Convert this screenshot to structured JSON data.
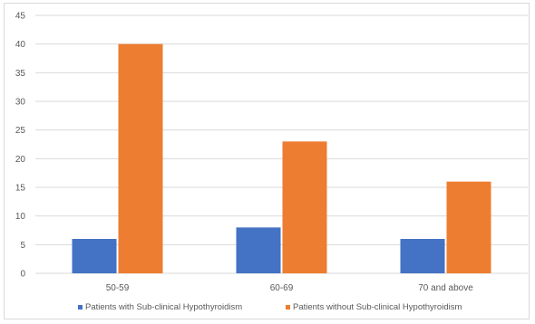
{
  "chart_data": {
    "type": "bar",
    "categories": [
      "50-59",
      "60-69",
      "70 and above"
    ],
    "series": [
      {
        "name": "Patients with Sub-clinical Hypothyroidism",
        "values": [
          6,
          8,
          6
        ],
        "color": "#4472c4"
      },
      {
        "name": "Patients without Sub-clinical Hypothyroidism",
        "values": [
          40,
          23,
          16
        ],
        "color": "#ed7d31"
      }
    ],
    "title": "",
    "xlabel": "",
    "ylabel": "",
    "ylim": [
      0,
      45
    ],
    "yticks": [
      0,
      5,
      10,
      15,
      20,
      25,
      30,
      35,
      40,
      45
    ],
    "grid": true,
    "legend_position": "bottom"
  }
}
